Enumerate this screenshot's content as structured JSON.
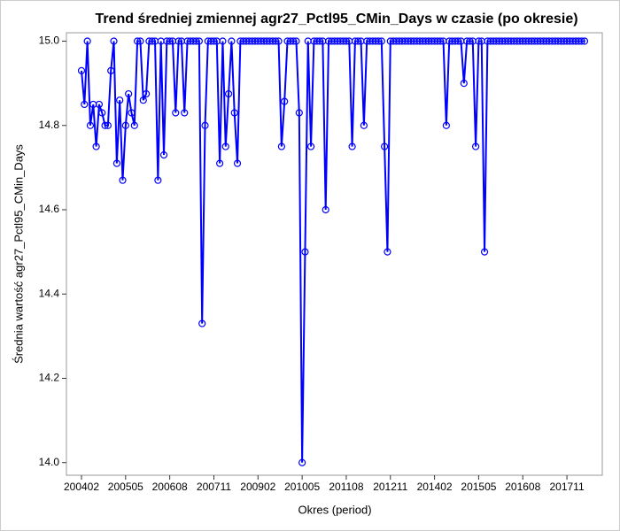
{
  "chart_data": {
    "type": "line",
    "title": "Trend średniej zmiennej agr27_Pctl95_CMin_Days w czasie (po okresie)",
    "x_label": "Okres (period)",
    "y_label": "Średnia wartość agr27_Pctl95_CMin_Days",
    "color": "#0000ff",
    "categories": [
      "200402",
      null,
      null,
      null,
      null,
      null,
      null,
      null,
      null,
      null,
      null,
      null,
      null,
      null,
      null,
      "200505",
      null,
      null,
      null,
      null,
      null,
      null,
      null,
      null,
      null,
      null,
      null,
      null,
      null,
      null,
      "200608",
      null,
      null,
      null,
      null,
      null,
      null,
      null,
      null,
      null,
      null,
      null,
      null,
      null,
      null,
      "200711",
      null,
      null,
      null,
      null,
      null,
      null,
      null,
      null,
      null,
      null,
      null,
      null,
      null,
      null,
      "200902",
      null,
      null,
      null,
      null,
      null,
      null,
      null,
      null,
      null,
      null,
      null,
      null,
      null,
      null,
      "201005",
      null,
      null,
      null,
      null,
      null,
      null,
      null,
      null,
      null,
      null,
      null,
      null,
      null,
      null,
      "201108",
      null,
      null,
      null,
      null,
      null,
      null,
      null,
      null,
      null,
      null,
      null,
      null,
      null,
      null,
      "201211",
      null,
      null,
      null,
      null,
      null,
      null,
      null,
      null,
      null,
      null,
      null,
      null,
      null,
      null,
      "201402",
      null,
      null,
      null,
      null,
      null,
      null,
      null,
      null,
      null,
      null,
      null,
      null,
      null,
      null,
      "201505",
      null,
      null,
      null,
      null,
      null,
      null,
      null,
      null,
      null,
      null,
      null,
      null,
      null,
      null,
      "201608",
      null,
      null,
      null,
      null,
      null,
      null,
      null,
      null,
      null,
      null,
      null,
      null,
      null,
      null,
      "201711",
      null,
      null,
      null,
      null,
      null,
      null
    ],
    "values": [
      14.93,
      14.85,
      15,
      14.8,
      14.85,
      14.75,
      14.85,
      14.83,
      14.8,
      14.8,
      14.93,
      15,
      14.71,
      14.86,
      14.67,
      14.8,
      14.875,
      14.83,
      14.8,
      15,
      15,
      14.86,
      14.875,
      15,
      15,
      15,
      14.67,
      15,
      14.73,
      15,
      15,
      15,
      14.83,
      15,
      15,
      14.83,
      15,
      15,
      15,
      15,
      15,
      14.33,
      14.8,
      15,
      15,
      15,
      15,
      14.71,
      15,
      14.75,
      14.875,
      15,
      14.83,
      14.71,
      15,
      15,
      15,
      15,
      15,
      15,
      15,
      15,
      15,
      15,
      15,
      15,
      15,
      15,
      14.75,
      14.857,
      15,
      15,
      15,
      15,
      14.83,
      14.0,
      14.5,
      15,
      14.75,
      15,
      15,
      15,
      15,
      14.6,
      15,
      15,
      15,
      15,
      15,
      15,
      15,
      15,
      14.75,
      15,
      15,
      15,
      14.8,
      15,
      15,
      15,
      15,
      15,
      15,
      14.75,
      14.5,
      15,
      15,
      15,
      15,
      15,
      15,
      15,
      15,
      15,
      15,
      15,
      15,
      15,
      15,
      15,
      15,
      15,
      15,
      15,
      14.8,
      15,
      15,
      15,
      15,
      15,
      14.9,
      15,
      15,
      15,
      14.75,
      15,
      15,
      14.5,
      15,
      15,
      15,
      15,
      15,
      15,
      15,
      15,
      15,
      15,
      15,
      15,
      15,
      15,
      15,
      15,
      15,
      15,
      15,
      15,
      15,
      15,
      15,
      15,
      15,
      15,
      15,
      15,
      15,
      15,
      15,
      15,
      15,
      15
    ],
    "ylim": [
      13.97,
      15.02
    ],
    "yticks": [
      {
        "value": 14,
        "label": "14.0"
      },
      14.2,
      14.4,
      14.6,
      14.8,
      {
        "value": 15,
        "label": "15.0"
      }
    ]
  }
}
